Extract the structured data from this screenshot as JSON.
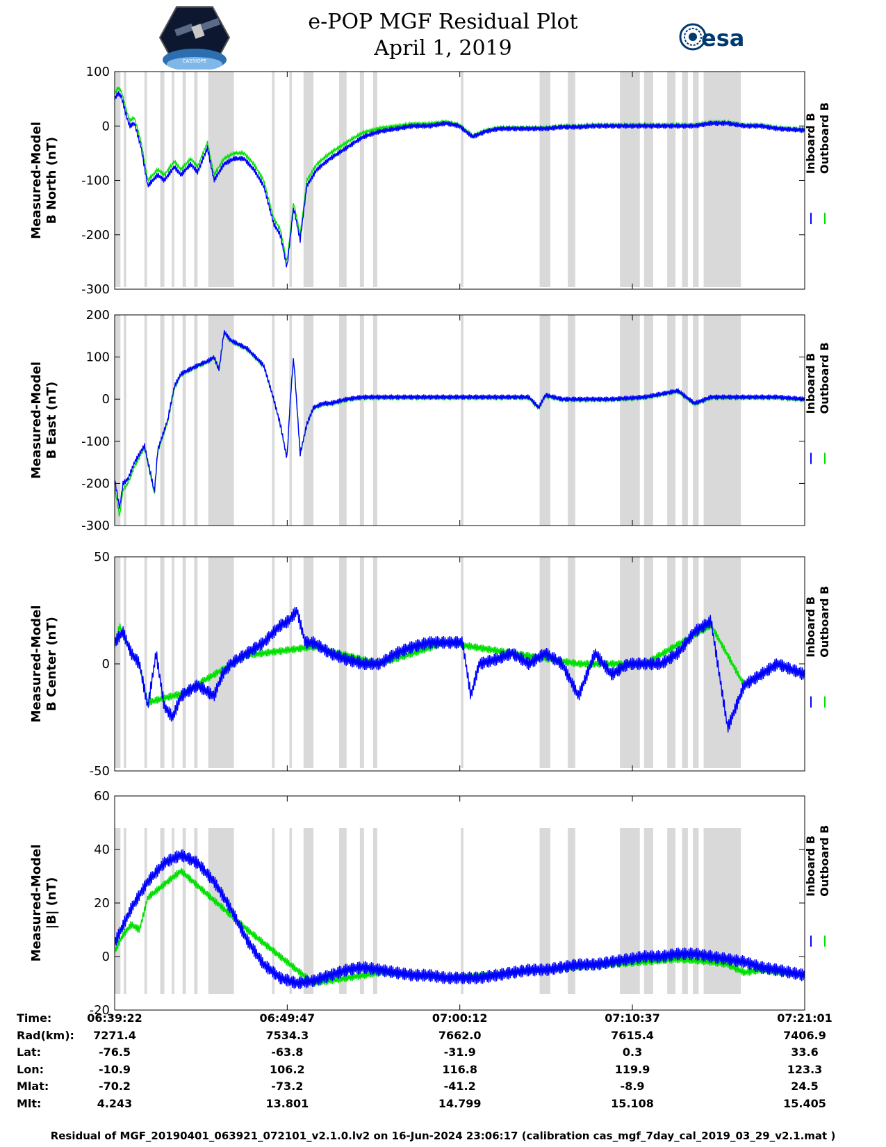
{
  "header": {
    "title_line1": "e-POP MGF Residual Plot",
    "title_line2": "April 1, 2019",
    "left_logo_text": "CASSIOPE",
    "right_logo_text": "esa"
  },
  "colors": {
    "inboard": "#0000ff",
    "outboard": "#00e000",
    "shade": "#d9d9d9"
  },
  "chart_data": [
    {
      "type": "line",
      "ylabel_line1": "Measured-Model",
      "ylabel_line2": "B North (nT)",
      "ylim": [
        -300,
        100
      ],
      "yticks": [
        "100",
        "0",
        "-100",
        "-200",
        "-300"
      ],
      "legend": [
        "Inboard B",
        "Outboard B"
      ],
      "series": [
        {
          "name": "Inboard B",
          "x": [
            0,
            0.2,
            0.4,
            0.7,
            0.9,
            1.2,
            1.6,
            2.0,
            2.6,
            3.0,
            3.6,
            4.0,
            4.6,
            5.0,
            5.6,
            6.0,
            6.6,
            7.2,
            7.8,
            8.4,
            9.0,
            9.6,
            10.0,
            10.4,
            10.8,
            11.2,
            11.6,
            12.2,
            13.0,
            14.0,
            15.0,
            16.0,
            17.0,
            18.0,
            19.0,
            20.0,
            20.8,
            21.6,
            22.4,
            23.2,
            24.0,
            25.0,
            26.0,
            27.0,
            28.0,
            29.0,
            30.0,
            31.0,
            32.0,
            33.0,
            34.0,
            35.0,
            36.0,
            37.0,
            38.0,
            39.0,
            40.0,
            41.65
          ],
          "values": [
            50,
            60,
            55,
            20,
            0,
            5,
            -40,
            -110,
            -90,
            -100,
            -75,
            -90,
            -70,
            -85,
            -40,
            -100,
            -70,
            -60,
            -60,
            -80,
            -110,
            -180,
            -200,
            -260,
            -150,
            -210,
            -110,
            -80,
            -60,
            -40,
            -20,
            -10,
            -5,
            0,
            0,
            5,
            0,
            -20,
            -10,
            -5,
            -5,
            -5,
            -5,
            -2,
            -2,
            0,
            0,
            0,
            0,
            0,
            0,
            0,
            5,
            5,
            0,
            0,
            -5,
            -8
          ]
        },
        {
          "name": "Outboard B",
          "x": [
            0,
            0.2,
            0.4,
            0.7,
            0.9,
            1.2,
            1.6,
            2.0,
            2.6,
            3.0,
            3.6,
            4.0,
            4.6,
            5.0,
            5.6,
            6.0,
            6.6,
            7.2,
            7.8,
            8.4,
            9.0,
            9.6,
            10.0,
            10.4,
            10.8,
            11.2,
            11.6,
            12.2,
            13.0,
            14.0,
            15.0,
            16.0,
            17.0,
            18.0,
            19.0,
            20.0,
            20.8,
            21.6,
            22.4,
            23.2,
            24.0,
            25.0,
            26.0,
            27.0,
            28.0,
            29.0,
            30.0,
            31.0,
            32.0,
            33.0,
            34.0,
            35.0,
            36.0,
            37.0,
            38.0,
            39.0,
            40.0,
            41.65
          ],
          "values": [
            60,
            70,
            65,
            30,
            10,
            15,
            -30,
            -100,
            -80,
            -90,
            -65,
            -80,
            -60,
            -75,
            -30,
            -90,
            -60,
            -50,
            -50,
            -70,
            -100,
            -170,
            -190,
            -250,
            -140,
            -200,
            -100,
            -70,
            -50,
            -30,
            -12,
            -4,
            0,
            4,
            4,
            8,
            2,
            -18,
            -8,
            -3,
            -3,
            -3,
            -3,
            0,
            0,
            2,
            2,
            2,
            2,
            2,
            2,
            2,
            7,
            7,
            2,
            2,
            -3,
            -6
          ]
        }
      ]
    },
    {
      "type": "line",
      "ylabel_line1": "Measured-Model",
      "ylabel_line2": "B East (nT)",
      "ylim": [
        -300,
        200
      ],
      "yticks": [
        "200",
        "100",
        "0",
        "-100",
        "-200",
        "-300"
      ],
      "legend": [
        "Inboard B",
        "Outboard B"
      ],
      "series": [
        {
          "name": "Inboard B",
          "x": [
            0,
            0.3,
            0.5,
            0.8,
            1.2,
            1.8,
            2.4,
            2.6,
            3.2,
            3.6,
            4.0,
            5.0,
            5.6,
            6.0,
            6.3,
            6.6,
            7.0,
            8.0,
            9.0,
            9.6,
            10.0,
            10.4,
            10.6,
            10.8,
            11.2,
            11.6,
            12.0,
            12.6,
            13.0,
            14.0,
            15.0,
            16.0,
            18.0,
            20.0,
            22.0,
            24.0,
            25.0,
            25.6,
            26.0,
            27.0,
            28.0,
            30.0,
            32.0,
            34.0,
            35.0,
            36.0,
            38.0,
            40.0,
            41.65
          ],
          "values": [
            -190,
            -260,
            -200,
            -190,
            -150,
            -110,
            -220,
            -120,
            -50,
            30,
            60,
            80,
            90,
            100,
            70,
            160,
            140,
            120,
            80,
            0,
            -60,
            -140,
            0,
            100,
            -130,
            -60,
            -20,
            -10,
            -10,
            0,
            5,
            5,
            5,
            5,
            5,
            5,
            5,
            -20,
            10,
            0,
            0,
            0,
            5,
            20,
            -10,
            5,
            5,
            5,
            0
          ]
        },
        {
          "name": "Outboard B",
          "x": [
            0,
            0.3,
            0.5,
            0.8,
            1.2,
            1.8,
            2.4,
            2.6,
            3.2,
            3.6,
            4.0,
            5.0,
            5.6,
            6.0,
            6.3,
            6.6,
            7.0,
            8.0,
            9.0,
            9.6,
            10.0,
            10.4,
            10.6,
            10.8,
            11.2,
            11.6,
            12.0,
            12.6,
            13.0,
            14.0,
            15.0,
            16.0,
            18.0,
            20.0,
            22.0,
            24.0,
            25.0,
            25.6,
            26.0,
            27.0,
            28.0,
            30.0,
            32.0,
            34.0,
            35.0,
            36.0,
            38.0,
            40.0,
            41.65
          ],
          "values": [
            -210,
            -280,
            -215,
            -200,
            -160,
            -115,
            -225,
            -125,
            -55,
            25,
            58,
            78,
            88,
            98,
            68,
            158,
            138,
            118,
            78,
            -2,
            -62,
            -142,
            -2,
            98,
            -132,
            -62,
            -22,
            -12,
            -12,
            -2,
            3,
            3,
            3,
            3,
            3,
            3,
            3,
            -22,
            8,
            -2,
            -2,
            -2,
            3,
            18,
            -12,
            3,
            3,
            3,
            -2
          ]
        }
      ]
    },
    {
      "type": "line",
      "ylabel_line1": "Measured-Model",
      "ylabel_line2": "B Center (nT)",
      "ylim": [
        -50,
        50
      ],
      "yticks": [
        "50",
        "0",
        "-50"
      ],
      "legend": [
        "Inboard B",
        "Outboard B"
      ],
      "series": [
        {
          "name": "Inboard B",
          "x": [
            0,
            0.5,
            1.0,
            1.5,
            2.0,
            2.5,
            3.0,
            3.5,
            4.0,
            5.0,
            6.0,
            6.5,
            7.0,
            8.0,
            9.0,
            10.0,
            10.5,
            11.0,
            11.5,
            12.0,
            13.0,
            14.0,
            15.0,
            16.0,
            17.0,
            18.0,
            19.0,
            20.0,
            21.0,
            21.5,
            22.0,
            23.0,
            24.0,
            25.0,
            26.0,
            27.0,
            28.0,
            29.0,
            30.0,
            31.0,
            32.0,
            33.0,
            34.0,
            35.0,
            36.0,
            37.0,
            38.0,
            39.0,
            40.0,
            41.65
          ],
          "values": [
            10,
            15,
            5,
            0,
            -20,
            5,
            -20,
            -25,
            -15,
            -10,
            -15,
            -5,
            0,
            5,
            10,
            18,
            20,
            25,
            10,
            10,
            5,
            2,
            0,
            0,
            5,
            8,
            10,
            10,
            10,
            -15,
            0,
            2,
            5,
            0,
            5,
            0,
            -15,
            5,
            -5,
            0,
            0,
            0,
            5,
            15,
            20,
            -30,
            -10,
            -5,
            0,
            -5
          ]
        },
        {
          "name": "Outboard B",
          "x": [
            0,
            0.3,
            0.6,
            1.0,
            1.4,
            2.0,
            4.0,
            8.0,
            12.0,
            16.0,
            20.0,
            24.0,
            28.0,
            32.0,
            36.0,
            38.0,
            40.0,
            41.65
          ],
          "values": [
            8,
            18,
            12,
            5,
            2,
            -18,
            -14,
            4,
            8,
            0,
            10,
            5,
            0,
            0,
            18,
            -10,
            0,
            -5
          ]
        }
      ]
    },
    {
      "type": "line",
      "ylabel_line1": "Measured-Model",
      "ylabel_line2": "|B| (nT)",
      "ylim": [
        -20,
        60
      ],
      "yticks": [
        "60",
        "40",
        "20",
        "0",
        "-20"
      ],
      "legend": [
        "Inboard B",
        "Outboard B"
      ],
      "series": [
        {
          "name": "Inboard B",
          "x": [
            0,
            1.0,
            2.0,
            3.0,
            4.0,
            5.0,
            6.0,
            7.0,
            8.0,
            9.0,
            10.0,
            11.0,
            12.0,
            13.0,
            14.0,
            15.0,
            16.0,
            17.0,
            18.0,
            19.0,
            20.0,
            21.0,
            22.0,
            23.0,
            24.0,
            25.0,
            26.0,
            27.0,
            28.0,
            29.0,
            30.0,
            31.0,
            32.0,
            33.0,
            34.0,
            35.0,
            36.0,
            37.0,
            38.0,
            39.0,
            40.0,
            41.65
          ],
          "values": [
            5,
            18,
            28,
            35,
            38,
            35,
            28,
            18,
            6,
            -3,
            -8,
            -10,
            -9,
            -7,
            -5,
            -4,
            -5,
            -6,
            -7,
            -7,
            -8,
            -8,
            -8,
            -7,
            -6,
            -5,
            -5,
            -4,
            -3,
            -3,
            -2,
            -1,
            0,
            0,
            1,
            1,
            0,
            -1,
            -2,
            -4,
            -5,
            -7
          ]
        },
        {
          "name": "Outboard B",
          "x": [
            0,
            0.5,
            1.0,
            1.5,
            2.0,
            4.0,
            8.0,
            12.0,
            16.0,
            20.0,
            24.0,
            28.0,
            32.0,
            34.0,
            36.0,
            37.0,
            38.0,
            39.0,
            40.0,
            41.65
          ],
          "values": [
            2,
            8,
            12,
            10,
            22,
            32,
            10,
            -10,
            -6,
            -8,
            -6,
            -4,
            -2,
            -1,
            -2,
            -3,
            -6,
            -5,
            -6,
            -7
          ]
        }
      ]
    }
  ],
  "xaxis": {
    "x_min": 0,
    "x_max": 41.65,
    "major_ticks": [
      0,
      10.4167,
      20.8333,
      31.25,
      41.65
    ],
    "shaded_intervals": [
      [
        0,
        0.35
      ],
      [
        0.55,
        0.7
      ],
      [
        1.8,
        1.95
      ],
      [
        2.75,
        3.0
      ],
      [
        3.45,
        3.6
      ],
      [
        4.1,
        4.3
      ],
      [
        4.8,
        5.0
      ],
      [
        5.65,
        7.2
      ],
      [
        9.5,
        9.65
      ],
      [
        10.55,
        10.7
      ],
      [
        11.4,
        12.0
      ],
      [
        13.55,
        14.0
      ],
      [
        14.8,
        15.05
      ],
      [
        15.6,
        15.85
      ],
      [
        20.9,
        21.05
      ],
      [
        25.65,
        26.3
      ],
      [
        27.35,
        27.8
      ],
      [
        30.5,
        31.7
      ],
      [
        31.95,
        32.5
      ],
      [
        33.35,
        33.85
      ],
      [
        34.25,
        34.6
      ],
      [
        34.9,
        35.25
      ],
      [
        35.55,
        37.8
      ]
    ]
  },
  "footer": {
    "row_labels": [
      "Time:",
      "Rad(km):",
      "Lat:",
      "Lon:",
      "Mlat:",
      "Mlt:"
    ],
    "columns": [
      [
        "06:39:22",
        "7271.4",
        "-76.5",
        "-10.9",
        "-70.2",
        "4.243"
      ],
      [
        "06:49:47",
        "7534.3",
        "-63.8",
        "106.2",
        "-73.2",
        "13.801"
      ],
      [
        "07:00:12",
        "7662.0",
        "-31.9",
        "116.8",
        "-41.2",
        "14.799"
      ],
      [
        "07:10:37",
        "7615.4",
        "0.3",
        "119.9",
        "-8.9",
        "15.108"
      ],
      [
        "07:21:01",
        "7406.9",
        "33.6",
        "123.3",
        "24.5",
        "15.405"
      ]
    ],
    "caption": "Residual of MGF_20190401_063921_072101_v2.1.0.lv2 on 16-Jun-2024 23:06:17 (calibration cas_mgf_7day_cal_2019_03_29_v2.1.mat )"
  }
}
